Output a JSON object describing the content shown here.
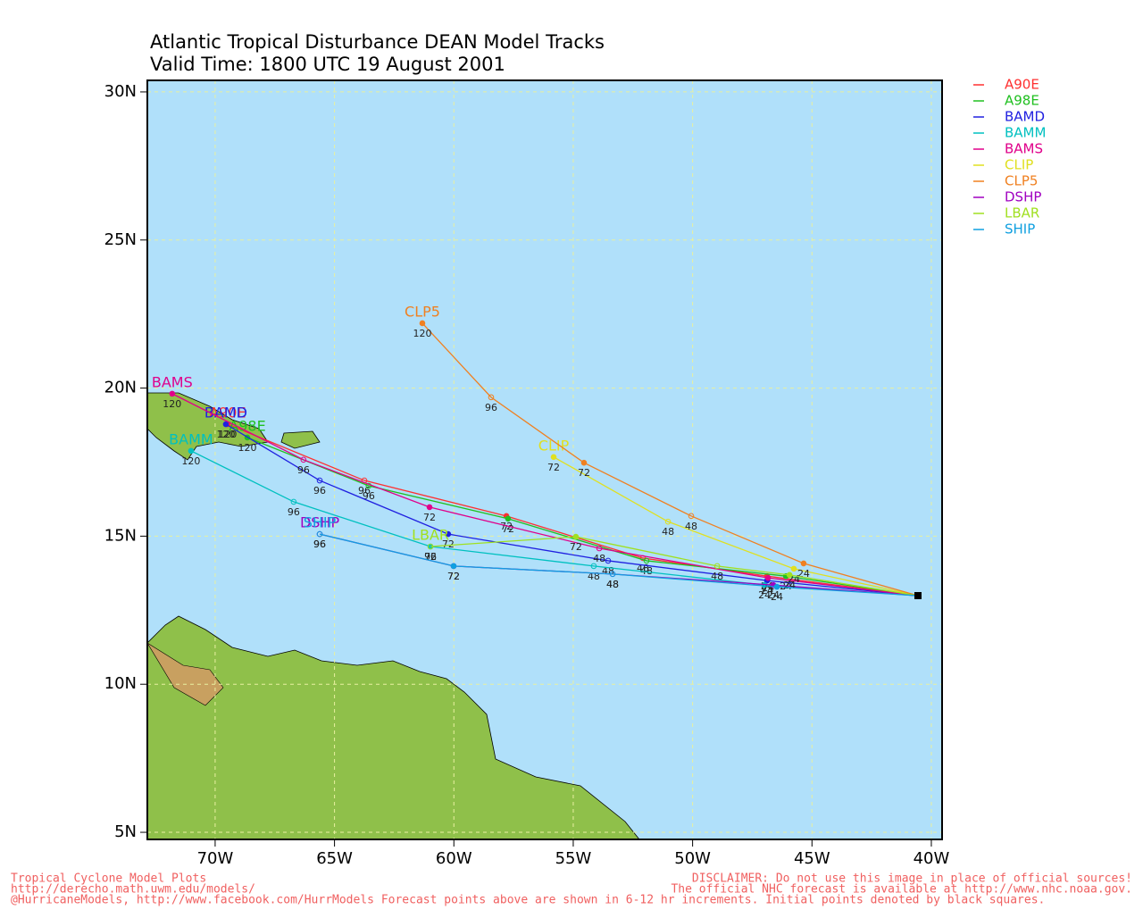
{
  "title": "Atlantic Tropical Disturbance DEAN Model Tracks",
  "subtitle": "Valid Time: 1800 UTC 19 August 2001",
  "chart_data": {
    "type": "line",
    "xlim": [
      -72.84,
      -39.55
    ],
    "ylim": [
      4.76,
      30.39
    ],
    "xticks": [
      {
        "value": -70,
        "label": "70W"
      },
      {
        "value": -65,
        "label": "65W"
      },
      {
        "value": -60,
        "label": "60W"
      },
      {
        "value": -55,
        "label": "55W"
      },
      {
        "value": -50,
        "label": "50W"
      },
      {
        "value": -45,
        "label": "45W"
      },
      {
        "value": -40,
        "label": "40W"
      }
    ],
    "yticks": [
      {
        "value": 5,
        "label": "5N"
      },
      {
        "value": 10,
        "label": "10N"
      },
      {
        "value": 15,
        "label": "15N"
      },
      {
        "value": 20,
        "label": "20N"
      },
      {
        "value": 25,
        "label": "25N"
      },
      {
        "value": 30,
        "label": "30N"
      }
    ],
    "grid": true,
    "series": [
      {
        "name": "A90E",
        "color": "#ff3030",
        "x": [
          -40.56,
          -46.88,
          -52.08,
          -57.8,
          -63.75,
          -69.48
        ],
        "y": [
          12.99,
          13.65,
          14.26,
          15.68,
          16.88,
          18.78
        ],
        "labels": [
          null,
          24,
          48,
          72,
          96,
          120
        ]
      },
      {
        "name": "A98E",
        "color": "#20c020",
        "x": [
          -40.56,
          -46.09,
          -51.93,
          -57.73,
          -63.57,
          -68.65
        ],
        "y": [
          12.99,
          13.65,
          14.17,
          15.59,
          16.7,
          18.33
        ],
        "labels": [
          null,
          24,
          48,
          72,
          96,
          120
        ]
      },
      {
        "name": "BAMD",
        "color": "#2020e0",
        "x": [
          -40.56,
          -46.88,
          -53.54,
          -60.24,
          -65.62,
          -69.55
        ],
        "y": [
          12.99,
          13.5,
          14.17,
          15.07,
          16.88,
          18.78
        ],
        "labels": [
          null,
          24,
          48,
          72,
          96,
          120
        ]
      },
      {
        "name": "BAMM",
        "color": "#00c0c0",
        "x": [
          -40.56,
          -46.99,
          -54.14,
          -60.98,
          -66.71,
          -71.01
        ],
        "y": [
          12.99,
          13.35,
          13.99,
          14.65,
          16.16,
          17.88
        ],
        "labels": [
          null,
          24,
          48,
          72,
          96,
          120
        ]
      },
      {
        "name": "BAMS",
        "color": "#e0008a",
        "x": [
          -40.56,
          -46.84,
          -53.91,
          -61.02,
          -66.3,
          -71.8
        ],
        "y": [
          12.99,
          13.59,
          14.59,
          15.98,
          17.58,
          19.81
        ],
        "labels": [
          null,
          24,
          48,
          72,
          96,
          120
        ]
      },
      {
        "name": "CLIP",
        "color": "#e0e020",
        "x": [
          -40.56,
          -45.76,
          -51.03,
          -55.82
        ],
        "y": [
          12.99,
          13.9,
          15.49,
          17.67
        ],
        "labels": [
          null,
          24,
          48,
          72
        ]
      },
      {
        "name": "CLP5",
        "color": "#f08020",
        "x": [
          -40.56,
          -45.35,
          -50.06,
          -54.55,
          -58.44,
          -61.32
        ],
        "y": [
          12.99,
          14.08,
          15.68,
          17.48,
          19.69,
          22.19
        ],
        "labels": [
          null,
          24,
          48,
          72,
          96,
          120
        ]
      },
      {
        "name": "DSHP",
        "color": "#a000c0",
        "x": [
          -40.56,
          -46.62,
          -53.35,
          -60.01,
          -65.62
        ],
        "y": [
          12.99,
          13.35,
          13.72,
          13.99,
          15.07
        ],
        "labels": [
          null,
          24,
          48,
          72,
          96
        ]
      },
      {
        "name": "LBAR",
        "color": "#a0e020",
        "x": [
          -40.56,
          -45.94,
          -48.97,
          -54.89,
          -60.98
        ],
        "y": [
          12.99,
          13.69,
          13.99,
          14.98,
          14.65
        ],
        "labels": [
          null,
          24,
          48,
          72,
          96
        ]
      },
      {
        "name": "SHIP",
        "color": "#10a0e0",
        "x": [
          -40.56,
          -46.47,
          -53.35,
          -60.01,
          -65.62
        ],
        "y": [
          12.99,
          13.29,
          13.72,
          13.99,
          15.07
        ],
        "labels": [
          null,
          24,
          48,
          72,
          96
        ]
      }
    ]
  },
  "footer": {
    "left": [
      "Tropical Cyclone Model Plots",
      "http://derecho.math.uwm.edu/models/",
      "@HurricaneModels, http://www.facebook.com/HurrModels  Forecast points above are shown in 6-12 hr increments. Initial points denoted by black squares."
    ],
    "right": [
      "DISCLAIMER: Do not use this image in place of official sources!",
      "The official NHC forecast is available at http://www.nhc.noaa.gov."
    ]
  }
}
